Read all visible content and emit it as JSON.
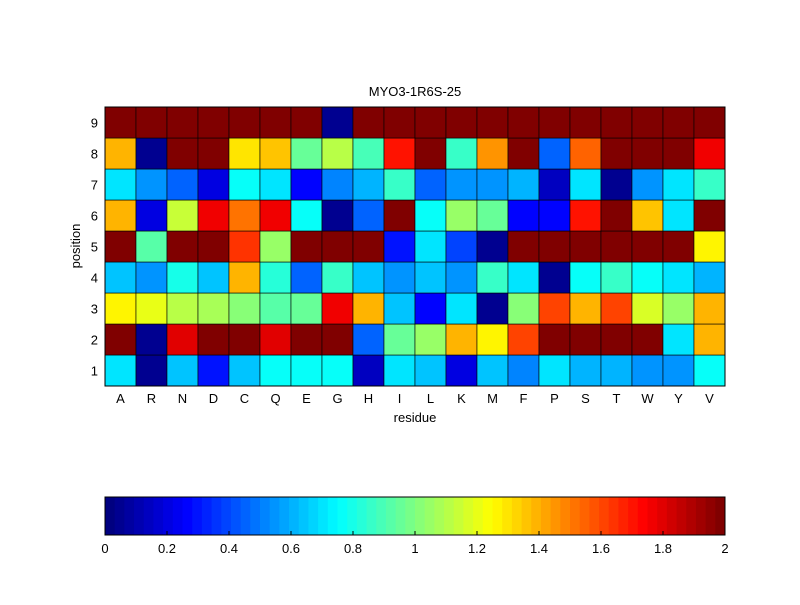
{
  "chart_data": {
    "type": "heatmap",
    "title": "MYO3-1R6S-25",
    "xlabel": "residue",
    "ylabel": "position",
    "x_categories": [
      "A",
      "R",
      "N",
      "D",
      "C",
      "Q",
      "E",
      "G",
      "H",
      "I",
      "L",
      "K",
      "M",
      "F",
      "P",
      "S",
      "T",
      "W",
      "Y",
      "V"
    ],
    "y_categories": [
      "1",
      "2",
      "3",
      "4",
      "5",
      "6",
      "7",
      "8",
      "9"
    ],
    "colormap": "jet",
    "clim": [
      0,
      2
    ],
    "colorbar": {
      "orientation": "horizontal",
      "placement": "bottom",
      "ticks": [
        "0",
        "0.2",
        "0.4",
        "0.6",
        "0.8",
        "1",
        "1.2",
        "1.4",
        "1.6",
        "1.8",
        "2"
      ]
    },
    "values_by_position": {
      "1": [
        0.7,
        0.05,
        0.65,
        0.3,
        0.65,
        0.78,
        0.78,
        0.78,
        0.15,
        0.7,
        0.65,
        0.2,
        0.65,
        0.5,
        0.7,
        0.6,
        0.6,
        0.55,
        0.55,
        0.75
      ],
      "2": [
        2,
        0.05,
        1.8,
        2,
        2,
        1.8,
        2,
        2,
        0.45,
        0.95,
        1.05,
        1.4,
        1.25,
        1.6,
        2,
        2,
        2,
        2,
        0.7,
        1.4
      ],
      "3": [
        1.25,
        1.2,
        1.12,
        1.08,
        1.0,
        0.92,
        0.95,
        1.75,
        1.4,
        0.65,
        0.25,
        0.7,
        0.05,
        1.0,
        1.6,
        1.4,
        1.6,
        1.17,
        1.05,
        1.38
      ],
      "4": [
        0.65,
        0.55,
        0.8,
        0.65,
        1.4,
        0.82,
        0.45,
        0.85,
        0.65,
        0.55,
        0.65,
        0.55,
        0.85,
        0.7,
        0.05,
        0.75,
        0.85,
        0.78,
        0.7,
        0.6
      ],
      "5": [
        2,
        0.92,
        2,
        2,
        1.65,
        1.05,
        2,
        2,
        2,
        0.3,
        0.7,
        0.4,
        0.05,
        2,
        2,
        2,
        2,
        2,
        2,
        1.25
      ],
      "6": [
        1.4,
        0.2,
        1.15,
        1.75,
        1.5,
        1.75,
        0.75,
        0.05,
        0.45,
        2,
        0.78,
        1.05,
        0.95,
        0.25,
        0.25,
        1.7,
        2,
        1.35,
        0.7,
        2
      ],
      "7": [
        0.7,
        0.55,
        0.45,
        0.2,
        0.75,
        0.7,
        0.25,
        0.5,
        0.6,
        0.85,
        0.45,
        0.55,
        0.55,
        0.6,
        0.15,
        0.7,
        0.05,
        0.55,
        0.7,
        0.85
      ],
      "8": [
        1.4,
        0.05,
        2,
        2,
        1.3,
        1.35,
        0.95,
        1.1,
        0.9,
        1.7,
        2,
        0.85,
        1.45,
        2,
        0.45,
        1.55,
        2,
        2,
        2,
        1.75
      ],
      "9": [
        2,
        2,
        2,
        2,
        2,
        2,
        2,
        0.05,
        2,
        2,
        2,
        2,
        2,
        2,
        2,
        2,
        2,
        2,
        2,
        2
      ]
    }
  }
}
